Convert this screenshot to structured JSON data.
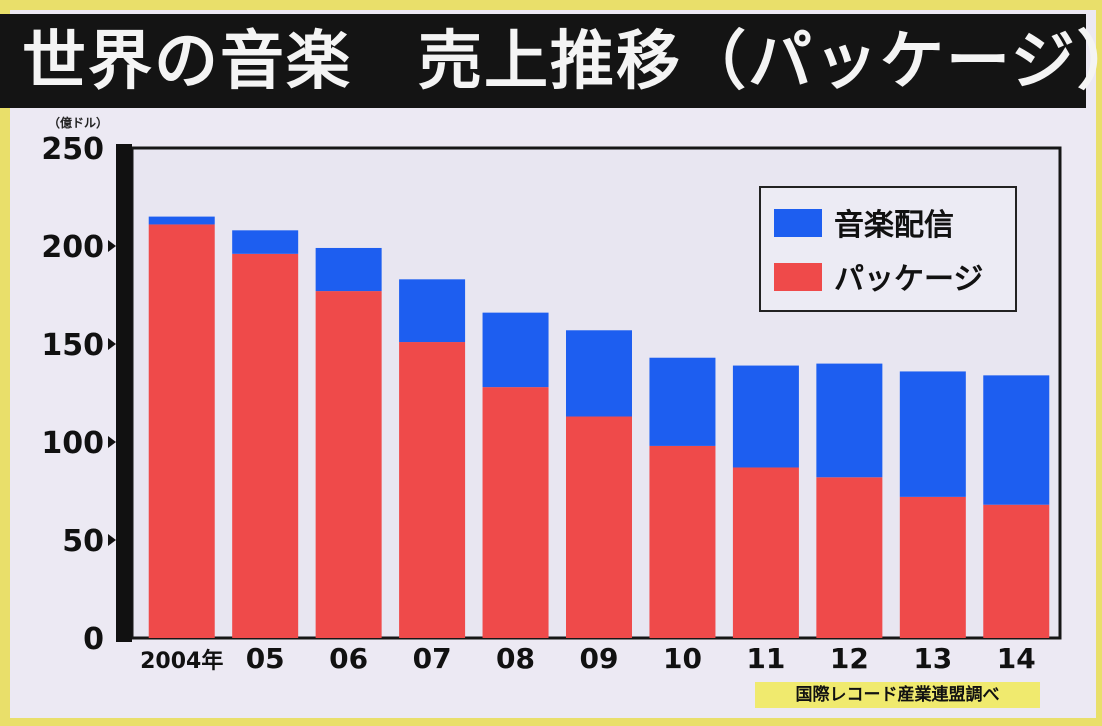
{
  "title": "世界の音楽　売上推移（パッケージ）",
  "unit_label": "（億ドル）",
  "source": "国際レコード産業連盟調べ",
  "colors": {
    "digital": "#1d5ef0",
    "package": "#ef4a4a"
  },
  "chart_data": {
    "type": "bar",
    "stacked": true,
    "categories": [
      "2004年",
      "05",
      "06",
      "07",
      "08",
      "09",
      "10",
      "11",
      "12",
      "13",
      "14"
    ],
    "series": [
      {
        "name": "パッケージ",
        "values": [
          211,
          196,
          177,
          151,
          128,
          113,
          98,
          87,
          82,
          72,
          68
        ]
      },
      {
        "name": "音楽配信",
        "values": [
          4,
          12,
          22,
          32,
          38,
          44,
          45,
          52,
          58,
          64,
          66
        ]
      }
    ],
    "yticks": [
      0,
      50,
      100,
      150,
      200,
      250
    ],
    "ylim": [
      0,
      250
    ],
    "legend": {
      "position": "top-right",
      "items": [
        "音楽配信",
        "パッケージ"
      ]
    }
  }
}
